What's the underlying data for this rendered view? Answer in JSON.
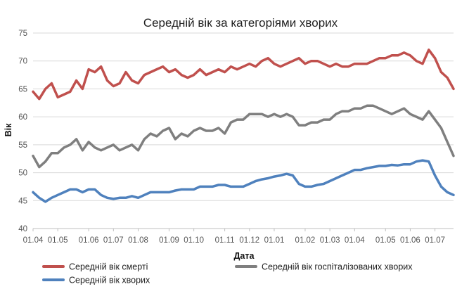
{
  "chart_data": {
    "type": "line",
    "title": "Середній вік за категоріями хворих",
    "xlabel": "Дата",
    "ylabel": "Вік",
    "ylim": [
      40,
      75
    ],
    "yticks": [
      40,
      45,
      50,
      55,
      60,
      65,
      70,
      75
    ],
    "x_ticks": [
      "01.04",
      "01.05",
      "01.06",
      "01.07",
      "01.08",
      "01.09",
      "01.10",
      "01.11",
      "01.12",
      "01.01",
      "01.02",
      "01.03",
      "01.04",
      "01.05",
      "01.06",
      "01.07"
    ],
    "x_tick_note": "weekly samples; one label every month (ticks at weeks 0,4,9,13,17,22,26,31,35,39,44,48,52,57,61,65)",
    "grid": "horizontal",
    "legend_position": "bottom",
    "series": [
      {
        "name": "Середній вік смерті",
        "color": "#c0504d",
        "values": [
          64.5,
          63.2,
          65.0,
          66.0,
          63.5,
          64.0,
          64.5,
          66.5,
          65.0,
          68.5,
          68.0,
          69.0,
          66.5,
          65.5,
          66.0,
          68.0,
          66.5,
          66.0,
          67.5,
          68.0,
          68.5,
          69.0,
          68.0,
          68.5,
          67.5,
          67.0,
          67.5,
          68.5,
          67.5,
          68.0,
          68.5,
          68.0,
          69.0,
          68.5,
          69.0,
          69.5,
          69.0,
          70.0,
          70.5,
          69.5,
          69.0,
          69.5,
          70.0,
          70.5,
          69.5,
          70.0,
          70.0,
          69.5,
          69.0,
          69.5,
          69.0,
          69.0,
          69.5,
          69.5,
          69.5,
          70.0,
          70.5,
          70.5,
          71.0,
          71.0,
          71.5,
          71.0,
          70.0,
          69.5,
          72.0,
          70.5,
          68.0,
          67.0,
          65.0
        ]
      },
      {
        "name": "Середній вік госпіталізованих хворих",
        "color": "#7f7f7f",
        "values": [
          53.0,
          51.0,
          52.0,
          53.5,
          53.5,
          54.5,
          55.0,
          56.0,
          54.0,
          55.5,
          54.5,
          54.0,
          54.5,
          55.0,
          54.0,
          54.5,
          55.0,
          54.0,
          56.0,
          57.0,
          56.5,
          57.5,
          58.0,
          56.0,
          57.0,
          56.5,
          57.5,
          58.0,
          57.5,
          57.5,
          58.0,
          57.0,
          59.0,
          59.5,
          59.5,
          60.5,
          60.5,
          60.5,
          60.0,
          60.5,
          60.0,
          60.5,
          60.0,
          58.5,
          58.5,
          59.0,
          59.0,
          59.5,
          59.5,
          60.5,
          61.0,
          61.0,
          61.5,
          61.5,
          62.0,
          62.0,
          61.5,
          61.0,
          60.5,
          61.0,
          61.5,
          60.5,
          60.0,
          59.5,
          61.0,
          59.5,
          58.0,
          55.5,
          53.0
        ]
      },
      {
        "name": "Середній вік хворих",
        "color": "#4f81bd",
        "values": [
          46.5,
          45.5,
          44.8,
          45.5,
          46.0,
          46.5,
          47.0,
          47.0,
          46.5,
          47.0,
          47.0,
          46.0,
          45.5,
          45.3,
          45.5,
          45.5,
          45.8,
          45.5,
          46.0,
          46.5,
          46.5,
          46.5,
          46.5,
          46.8,
          47.0,
          47.0,
          47.0,
          47.5,
          47.5,
          47.5,
          47.8,
          47.8,
          47.5,
          47.5,
          47.5,
          48.0,
          48.5,
          48.8,
          49.0,
          49.3,
          49.5,
          49.8,
          49.5,
          48.0,
          47.5,
          47.5,
          47.8,
          48.0,
          48.5,
          49.0,
          49.5,
          50.0,
          50.5,
          50.5,
          50.8,
          51.0,
          51.2,
          51.2,
          51.4,
          51.3,
          51.5,
          51.5,
          52.0,
          52.2,
          52.0,
          49.5,
          47.5,
          46.5,
          46.0
        ]
      }
    ]
  }
}
